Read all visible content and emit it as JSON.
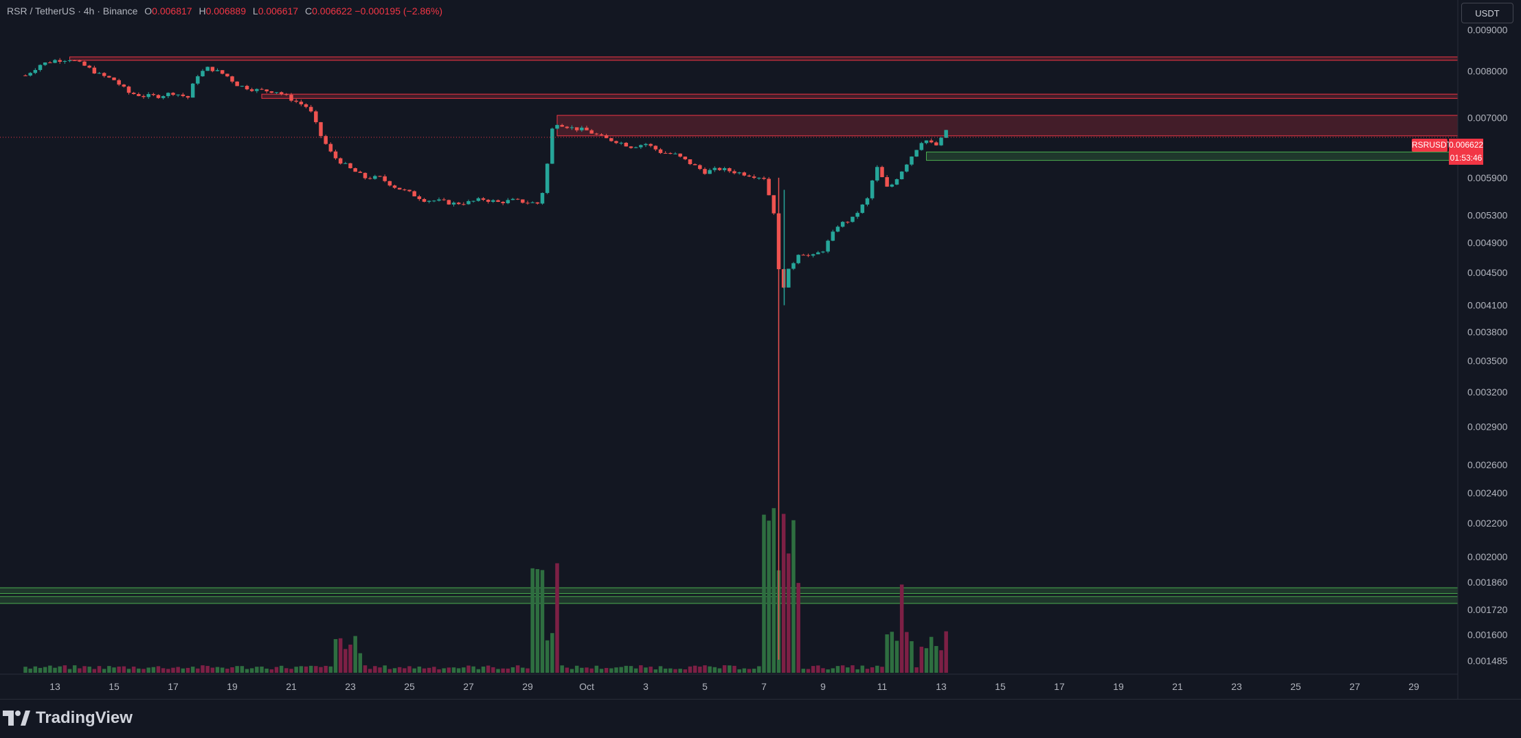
{
  "header": {
    "symbol": "RSR / TetherUS · 4h · Binance",
    "open_label": "O",
    "open": "0.006817",
    "high_label": "H",
    "high": "0.006889",
    "low_label": "L",
    "low": "0.006617",
    "close_label": "C",
    "close": "0.006622",
    "change": "−0.000195 (−2.86%)"
  },
  "currency_button": "USDT",
  "price_tag": {
    "symbol": "RSRUSDT",
    "price": "0.006622",
    "countdown": "01:53:46"
  },
  "brand": {
    "name": "TradingView",
    "icon": "tradingview-logo-icon"
  },
  "colors": {
    "background": "#131722",
    "up": "#26a69a",
    "down": "#ef5350",
    "resistance_zone": "#f23645",
    "support_zone": "#4caf50",
    "volume_up": "#2e6e40",
    "volume_down": "#7d2045"
  },
  "chart_data": {
    "type": "candlestick",
    "title": "RSR / TetherUS · 4h · Binance",
    "y_scale": "log",
    "ylim": [
      0.00143,
      0.0098
    ],
    "y_ticks": [
      "0.009000",
      "0.008000",
      "0.007000",
      "0.006622",
      "0.005900",
      "0.005300",
      "0.004900",
      "0.004500",
      "0.004100",
      "0.003800",
      "0.003500",
      "0.003200",
      "0.002900",
      "0.002600",
      "0.002400",
      "0.002200",
      "0.002000",
      "0.001860",
      "0.001720",
      "0.001600",
      "0.001485"
    ],
    "x_ticks": [
      "13",
      "15",
      "17",
      "19",
      "21",
      "23",
      "25",
      "27",
      "29",
      "Oct",
      "3",
      "5",
      "7",
      "9",
      "11",
      "13",
      "15",
      "17",
      "19",
      "21",
      "23",
      "25",
      "27",
      "29"
    ],
    "x_range_days": [
      12.0,
      30.5
    ],
    "price_anchors": [
      [
        12.0,
        0.0079
      ],
      [
        12.5,
        0.00815
      ],
      [
        13.0,
        0.00825
      ],
      [
        13.5,
        0.00828
      ],
      [
        14.0,
        0.00812
      ],
      [
        14.5,
        0.00792
      ],
      [
        15.0,
        0.0078
      ],
      [
        15.5,
        0.00752
      ],
      [
        16.0,
        0.00745
      ],
      [
        16.5,
        0.00745
      ],
      [
        17.0,
        0.00752
      ],
      [
        17.5,
        0.00742
      ],
      [
        17.8,
        0.0079
      ],
      [
        18.2,
        0.00808
      ],
      [
        18.8,
        0.0079
      ],
      [
        19.2,
        0.00768
      ],
      [
        19.8,
        0.00758
      ],
      [
        20.5,
        0.00755
      ],
      [
        21.2,
        0.00732
      ],
      [
        21.6,
        0.0072
      ],
      [
        22.0,
        0.00665
      ],
      [
        22.4,
        0.00628
      ],
      [
        23.0,
        0.00605
      ],
      [
        23.5,
        0.0059
      ],
      [
        24.0,
        0.0059
      ],
      [
        24.5,
        0.00575
      ],
      [
        25.0,
        0.00565
      ],
      [
        25.5,
        0.00554
      ],
      [
        26.0,
        0.00552
      ],
      [
        26.5,
        0.00548
      ],
      [
        27.0,
        0.0055
      ],
      [
        27.5,
        0.00555
      ],
      [
        28.0,
        0.0055
      ],
      [
        28.5,
        0.00553
      ],
      [
        29.0,
        0.0055
      ],
      [
        29.4,
        0.00548
      ],
      [
        29.6,
        0.00585
      ],
      [
        29.8,
        0.00675
      ],
      [
        30.0,
        0.0069
      ],
      [
        30.5,
        0.0068
      ],
      [
        31.0,
        0.00675
      ],
      [
        31.6,
        0.0066
      ],
      [
        32.0,
        0.00655
      ],
      [
        32.5,
        0.00645
      ],
      [
        33.0,
        0.0065
      ],
      [
        33.5,
        0.00635
      ],
      [
        34.0,
        0.0063
      ],
      [
        34.5,
        0.00615
      ],
      [
        35.0,
        0.006
      ],
      [
        35.5,
        0.00605
      ],
      [
        36.0,
        0.006
      ],
      [
        36.5,
        0.00595
      ],
      [
        37.0,
        0.0059
      ],
      [
        37.4,
        0.00525
      ],
      [
        37.55,
        0.0042
      ],
      [
        37.8,
        0.0045
      ],
      [
        38.2,
        0.00478
      ],
      [
        38.6,
        0.0047
      ],
      [
        39.0,
        0.0048
      ],
      [
        39.5,
        0.00515
      ],
      [
        40.0,
        0.00525
      ],
      [
        40.5,
        0.00555
      ],
      [
        40.8,
        0.0061
      ],
      [
        41.2,
        0.0057
      ],
      [
        41.5,
        0.0059
      ],
      [
        42.0,
        0.00628
      ],
      [
        42.4,
        0.0066
      ],
      [
        42.8,
        0.00645
      ],
      [
        43.0,
        0.00658
      ],
      [
        43.2,
        0.0068
      ],
      [
        43.3,
        0.006622
      ]
    ],
    "spike": {
      "day": 37.5,
      "low": 0.00149,
      "close": 0.0042
    },
    "current_price": 0.006622,
    "zones": [
      {
        "kind": "resistance",
        "low": 0.00825,
        "high": 0.00833,
        "from_day": 13.5
      },
      {
        "kind": "resistance",
        "low": 0.0074,
        "high": 0.00749,
        "from_day": 20.0
      },
      {
        "kind": "resistance",
        "low": 0.00665,
        "high": 0.00705,
        "from_day": 30.0
      },
      {
        "kind": "support",
        "low": 0.0062,
        "high": 0.00635,
        "from_day": 42.5
      },
      {
        "kind": "support",
        "low": 0.00175,
        "high": 0.001785,
        "from_day": 0
      },
      {
        "kind": "support",
        "low": 0.0018,
        "high": 0.00183,
        "from_day": 0
      }
    ],
    "volume_spikes": [
      {
        "day": 22.9,
        "value": 0.45
      },
      {
        "day": 29.6,
        "value": 0.75
      },
      {
        "day": 37.45,
        "value": 1.0
      },
      {
        "day": 37.75,
        "value": 1.0
      },
      {
        "day": 41.5,
        "value": 0.55
      },
      {
        "day": 42.7,
        "value": 0.5
      },
      {
        "day": 43.2,
        "value": 0.4
      }
    ]
  }
}
